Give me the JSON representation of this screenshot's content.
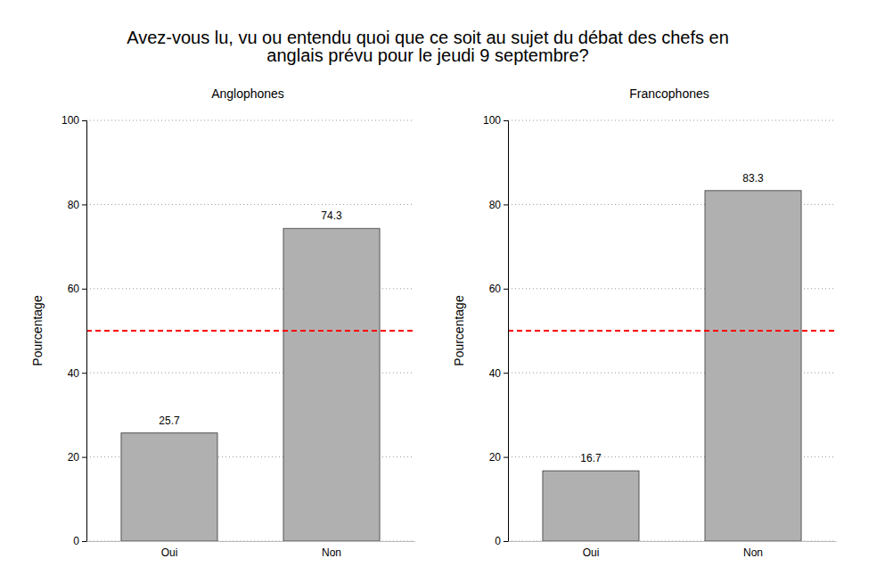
{
  "title": [
    "Avez-vous lu, vu ou entendu quoi que ce soit au sujet du débat des chefs en",
    "anglais prévu pour le jeudi 9 septembre?"
  ],
  "chart_data": [
    {
      "type": "bar",
      "title": "Anglophones",
      "categories": [
        "Oui",
        "Non"
      ],
      "values": [
        25.7,
        74.3
      ],
      "color": "#b0b0b0",
      "ylabel": "Pourcentage",
      "ylim": [
        0,
        100
      ],
      "yticks": [
        0,
        20,
        40,
        60,
        80,
        100
      ],
      "grid": true,
      "data_labels": true,
      "reference_line": {
        "value": 50,
        "color": "#ff0000",
        "line_style": "dashed"
      }
    },
    {
      "type": "bar",
      "title": "Francophones",
      "categories": [
        "Oui",
        "Non"
      ],
      "values": [
        16.7,
        83.3
      ],
      "color": "#b0b0b0",
      "ylabel": "Pourcentage",
      "ylim": [
        0,
        100
      ],
      "yticks": [
        0,
        20,
        40,
        60,
        80,
        100
      ],
      "grid": true,
      "data_labels": true,
      "reference_line": {
        "value": 50,
        "color": "#ff0000",
        "line_style": "dashed"
      }
    }
  ]
}
